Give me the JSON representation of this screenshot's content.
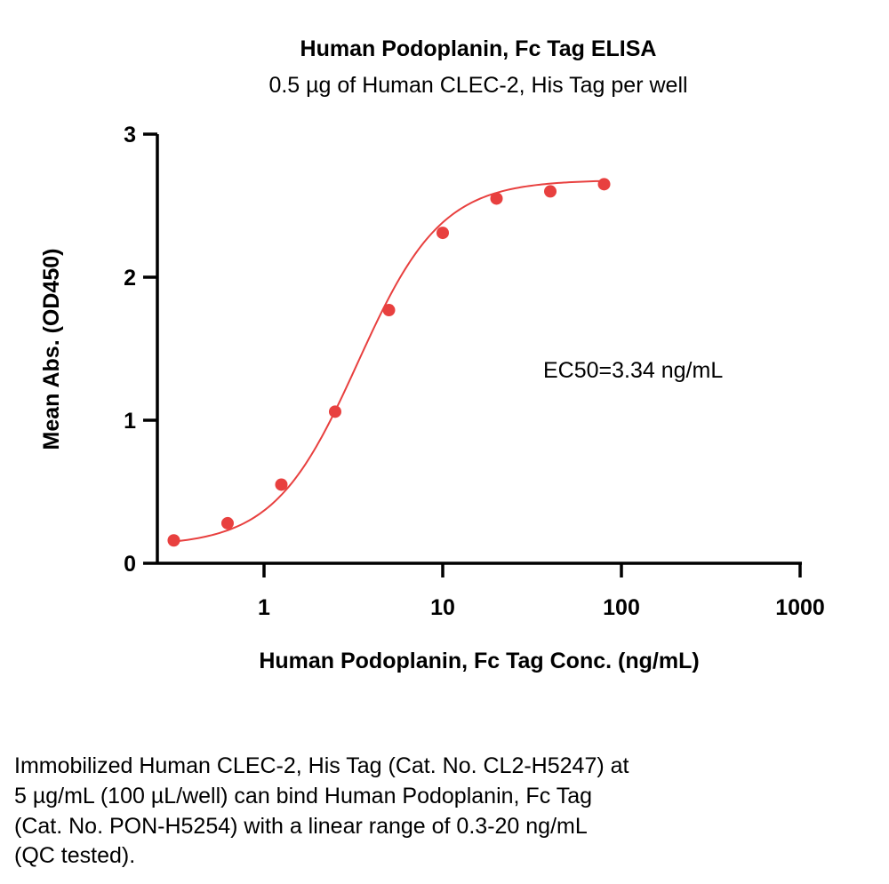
{
  "chart_data": {
    "type": "scatter",
    "title": "Human Podoplanin, Fc Tag ELISA",
    "subtitle": "0.5 µg of Human CLEC-2, His Tag per well",
    "xlabel": "Human Podoplanin, Fc Tag Conc. (ng/mL)",
    "ylabel": "Mean Abs. (OD450)",
    "xscale": "log",
    "xlim": [
      0.3,
      1000
    ],
    "ylim": [
      0,
      3
    ],
    "xticks": [
      1,
      10,
      100,
      1000
    ],
    "xtick_labels": [
      "1",
      "10",
      "100",
      "1000"
    ],
    "yticks": [
      0,
      1,
      2,
      3
    ],
    "ytick_labels": [
      "0",
      "1",
      "2",
      "3"
    ],
    "grid": false,
    "color": "#e8403f",
    "series": [
      {
        "x": [
          0.3125,
          0.625,
          1.25,
          2.5,
          5,
          10,
          20,
          40,
          80
        ],
        "y": [
          0.16,
          0.28,
          0.55,
          1.06,
          1.77,
          2.31,
          2.55,
          2.6,
          2.65
        ]
      }
    ],
    "fit_curve": {
      "type": "4PL",
      "bottom": 0.12,
      "top": 2.68,
      "ec50": 3.34,
      "hill": 1.85
    },
    "annotation": "EC50=3.34 ng/mL"
  },
  "caption": [
    "Immobilized Human CLEC-2, His Tag (Cat. No. CL2-H5247) at",
    "5 µg/mL (100 µL/well) can bind Human Podoplanin, Fc Tag",
    "(Cat. No. PON-H5254) with a linear range of 0.3-20 ng/mL",
    "(QC tested)."
  ]
}
